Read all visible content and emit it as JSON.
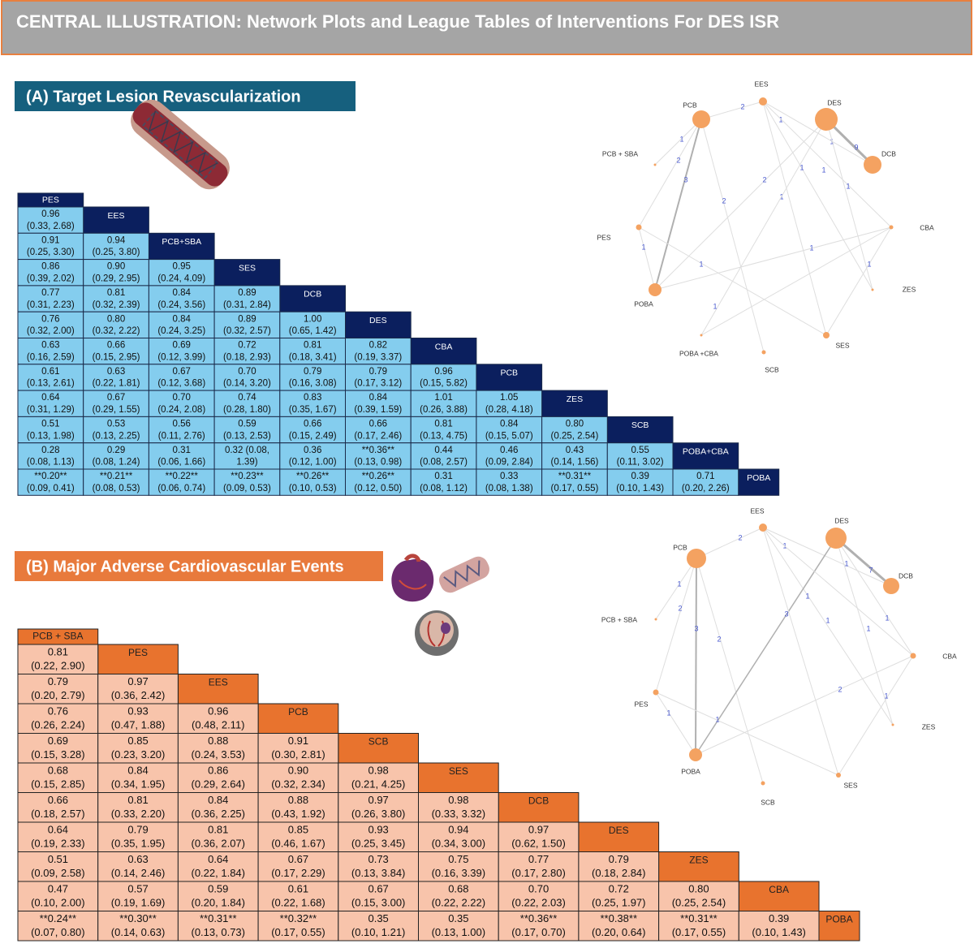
{
  "header": {
    "title": "CENTRAL ILLUSTRATION: Network Plots and League Tables of Interventions For DES ISR"
  },
  "section_a": {
    "title": "(A) Target Lesion Revascularization",
    "table": {
      "treatments": [
        "PES",
        "EES",
        "PCB+SBA",
        "SES",
        "DCB",
        "DES",
        "CBA",
        "PCB",
        "ZES",
        "SCB",
        "POBA+CBA",
        "POBA"
      ],
      "rows": [
        [
          [
            "0.96",
            "(0.33, 2.68)"
          ]
        ],
        [
          [
            "0.91",
            "(0.25, 3.30)"
          ],
          [
            "0.94",
            "(0.25, 3.80)"
          ]
        ],
        [
          [
            "0.86",
            "(0.39, 2.02)"
          ],
          [
            "0.90",
            "(0.29, 2.95)"
          ],
          [
            "0.95",
            "(0.24, 4.09)"
          ]
        ],
        [
          [
            "0.77",
            "(0.31, 2.23)"
          ],
          [
            "0.81",
            "(0.32, 2.39)"
          ],
          [
            "0.84",
            "(0.24, 3.56)"
          ],
          [
            "0.89",
            "(0.31, 2.84)"
          ]
        ],
        [
          [
            "0.76",
            "(0.32, 2.00)"
          ],
          [
            "0.80",
            "(0.32, 2.22)"
          ],
          [
            "0.84",
            "(0.24, 3.25)"
          ],
          [
            "0.89",
            "(0.32, 2.57)"
          ],
          [
            "1.00",
            "(0.65, 1.42)"
          ]
        ],
        [
          [
            "0.63",
            "(0.16, 2.59)"
          ],
          [
            "0.66",
            "(0.15, 2.95)"
          ],
          [
            "0.69",
            "(0.12, 3.99)"
          ],
          [
            "0.72",
            "(0.18, 2.93)"
          ],
          [
            "0.81",
            "(0.18, 3.41)"
          ],
          [
            "0.82",
            "(0.19, 3.37)"
          ]
        ],
        [
          [
            "0.61",
            "(0.13, 2.61)"
          ],
          [
            "0.63",
            "(0.22, 1.81)"
          ],
          [
            "0.67",
            "(0.12, 3.68)"
          ],
          [
            "0.70",
            "(0.14, 3.20)"
          ],
          [
            "0.79",
            "(0.16, 3.08)"
          ],
          [
            "0.79",
            "(0.17, 3.12)"
          ],
          [
            "0.96",
            "(0.15, 5.82)"
          ]
        ],
        [
          [
            "0.64",
            "(0.31, 1.29)"
          ],
          [
            "0.67",
            "(0.29, 1.55)"
          ],
          [
            "0.70",
            "(0.24, 2.08)"
          ],
          [
            "0.74",
            "(0.28, 1.80)"
          ],
          [
            "0.83",
            "(0.35, 1.67)"
          ],
          [
            "0.84",
            "(0.39, 1.59)"
          ],
          [
            "1.01",
            "(0.26, 3.88)"
          ],
          [
            "1.05",
            "(0.28, 4.18)"
          ]
        ],
        [
          [
            "0.51",
            "(0.13, 1.98)"
          ],
          [
            "0.53",
            "(0.13, 2.25)"
          ],
          [
            "0.56",
            "(0.11, 2.76)"
          ],
          [
            "0.59",
            "(0.13, 2.53)"
          ],
          [
            "0.66",
            "(0.15, 2.49)"
          ],
          [
            "0.66",
            "(0.17, 2.46)"
          ],
          [
            "0.81",
            "(0.13, 4.75)"
          ],
          [
            "0.84",
            "(0.15, 5.07)"
          ],
          [
            "0.80",
            "(0.25, 2.54)"
          ]
        ],
        [
          [
            "0.28",
            "(0.08, 1.13)"
          ],
          [
            "0.29",
            "(0.08, 1.24)"
          ],
          [
            "0.31",
            "(0.06, 1.66)"
          ],
          [
            "0.32 (0.08,",
            "1.39)"
          ],
          [
            "0.36",
            "(0.12, 1.00)"
          ],
          [
            "**0.36**",
            "(0.13, 0.98)"
          ],
          [
            "0.44",
            "(0.08, 2.57)"
          ],
          [
            "0.46",
            "(0.09, 2.84)"
          ],
          [
            "0.43",
            "(0.14, 1.56)"
          ],
          [
            "0.55",
            "(0.11, 3.02)"
          ]
        ],
        [
          [
            "**0.20**",
            "(0.09, 0.41)"
          ],
          [
            "**0.21**",
            "(0.08, 0.53)"
          ],
          [
            "**0.22**",
            "(0.06, 0.74)"
          ],
          [
            "**0.23**",
            "(0.09, 0.53)"
          ],
          [
            "**0.26**",
            "(0.10, 0.53)"
          ],
          [
            "**0.26**",
            "(0.12, 0.50)"
          ],
          [
            "0.31",
            "(0.08, 1.12)"
          ],
          [
            "0.33",
            "(0.08, 1.38)"
          ],
          [
            "**0.31**",
            "(0.17, 0.55)"
          ],
          [
            "0.39",
            "(0.10, 1.43)"
          ],
          [
            "0.71",
            "(0.20, 2.26)"
          ]
        ]
      ]
    },
    "network": {
      "nodes": [
        "EES",
        "PCB",
        "DES",
        "DCB",
        "PCB + SBA",
        "PES",
        "CBA",
        "ZES",
        "POBA",
        "SES",
        "POBA +CBA",
        "SCB"
      ],
      "edge_labels": [
        "2",
        "1",
        "9",
        "1",
        "1",
        "2",
        "3",
        "2",
        "2",
        "1",
        "1",
        "1",
        "1",
        "1",
        "1",
        "1",
        "1",
        "1"
      ]
    }
  },
  "section_b": {
    "title": "(B)  Major Adverse Cardiovascular Events",
    "table": {
      "treatments": [
        "PCB + SBA",
        "PES",
        "EES",
        "PCB",
        "SCB",
        "SES",
        "DCB",
        "DES",
        "ZES",
        "CBA",
        "POBA"
      ],
      "rows": [
        [
          [
            "0.81",
            "(0.22, 2.90)"
          ]
        ],
        [
          [
            "0.79",
            "(0.20, 2.79)"
          ],
          [
            "0.97",
            "(0.36, 2.42)"
          ]
        ],
        [
          [
            "0.76",
            "(0.26, 2.24)"
          ],
          [
            "0.93",
            "(0.47, 1.88)"
          ],
          [
            "0.96",
            "(0.48, 2.11)"
          ]
        ],
        [
          [
            "0.69",
            "(0.15, 3.28)"
          ],
          [
            "0.85",
            "(0.23, 3.20)"
          ],
          [
            "0.88",
            "(0.24, 3.53)"
          ],
          [
            "0.91",
            "(0.30, 2.81)"
          ]
        ],
        [
          [
            "0.68",
            "(0.15, 2.85)"
          ],
          [
            "0.84",
            "(0.34, 1.95)"
          ],
          [
            "0.86",
            "(0.29, 2.64)"
          ],
          [
            "0.90",
            "(0.32, 2.34)"
          ],
          [
            "0.98",
            "(0.21, 4.25)"
          ]
        ],
        [
          [
            "0.66",
            "(0.18, 2.57)"
          ],
          [
            "0.81",
            "(0.33, 2.20)"
          ],
          [
            "0.84",
            "(0.36, 2.25)"
          ],
          [
            "0.88",
            "(0.43, 1.92)"
          ],
          [
            "0.97",
            "(0.26, 3.80)"
          ],
          [
            "0.98",
            "(0.33, 3.32)"
          ]
        ],
        [
          [
            "0.64",
            "(0.19, 2.33)"
          ],
          [
            "0.79",
            "(0.35, 1.95)"
          ],
          [
            "0.81",
            "(0.36, 2.07)"
          ],
          [
            "0.85",
            "(0.46, 1.67)"
          ],
          [
            "0.93",
            "(0.25, 3.45)"
          ],
          [
            "0.94",
            "(0.34, 3.00)"
          ],
          [
            "0.97",
            "(0.62, 1.50)"
          ]
        ],
        [
          [
            "0.51",
            "(0.09, 2.58)"
          ],
          [
            "0.63",
            "(0.14, 2.46)"
          ],
          [
            "0.64",
            "(0.22, 1.84)"
          ],
          [
            "0.67",
            "(0.17, 2.29)"
          ],
          [
            "0.73",
            "(0.13, 3.84)"
          ],
          [
            "0.75",
            "(0.16, 3.39)"
          ],
          [
            "0.77",
            "(0.17, 2.80)"
          ],
          [
            "0.79",
            "(0.18, 2.84)"
          ]
        ],
        [
          [
            "0.47",
            "(0.10, 2.00)"
          ],
          [
            "0.57",
            "(0.19, 1.69)"
          ],
          [
            "0.59",
            "(0.20, 1.84)"
          ],
          [
            "0.61",
            "(0.22, 1.68)"
          ],
          [
            "0.67",
            "(0.15, 3.00)"
          ],
          [
            "0.68",
            "(0.22, 2.22)"
          ],
          [
            "0.70",
            "(0.22, 2.03)"
          ],
          [
            "0.72",
            "(0.25, 1.97)"
          ],
          [
            "0.80",
            "(0.25, 2.54)"
          ]
        ],
        [
          [
            "**0.24**",
            "(0.07, 0.80)"
          ],
          [
            "**0.30**",
            "(0.14, 0.63)"
          ],
          [
            "**0.31**",
            "(0.13, 0.73)"
          ],
          [
            "**0.32**",
            "(0.17, 0.55)"
          ],
          [
            "0.35",
            "(0.10, 1.21)"
          ],
          [
            "0.35",
            "(0.13, 1.00)"
          ],
          [
            "**0.36**",
            "(0.17, 0.70)"
          ],
          [
            "**0.38**",
            "(0.20, 0.64)"
          ],
          [
            "**0.31**",
            "(0.17, 0.55)"
          ],
          [
            "0.39",
            "(0.10, 1.43)"
          ]
        ]
      ]
    },
    "network": {
      "nodes": [
        "EES",
        "PCB",
        "DES",
        "DCB",
        "PCB + SBA",
        "CBA",
        "PES",
        "ZES",
        "POBA",
        "SES",
        "SCB"
      ],
      "edge_labels": [
        "2",
        "1",
        "7",
        "1",
        "1",
        "2",
        "3",
        "2",
        "3",
        "1",
        "1",
        "1",
        "1",
        "2",
        "1",
        "1",
        "1"
      ]
    }
  }
}
